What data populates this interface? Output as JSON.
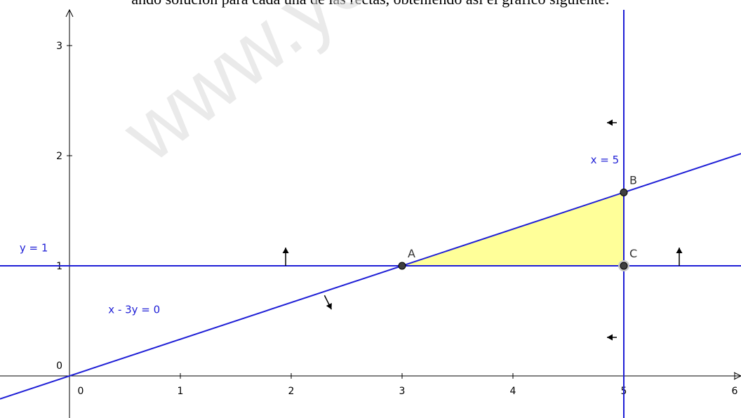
{
  "caption": "ando solución para cada una de las rectas, obteniendo así el gráfico siguiente:",
  "watermark": "www.yoquiero",
  "colors": {
    "line": "#1f1fd6",
    "region": "#ffff99",
    "point": "#404040",
    "axis": "#000000"
  },
  "chart_data": {
    "type": "line",
    "xlim": [
      -0.6,
      6.05
    ],
    "ylim": [
      -0.35,
      3.3
    ],
    "x_ticks": [
      0,
      1,
      2,
      3,
      4,
      5,
      6
    ],
    "y_ticks": [
      0,
      1,
      2,
      3
    ],
    "lines": [
      {
        "name": "y = 1",
        "kind": "horizontal",
        "y": 1,
        "label_at": [
          -0.45,
          1.13
        ],
        "arrow": {
          "dir": "up",
          "at": [
            1.95,
            1
          ],
          "at2": [
            5.5,
            1
          ]
        }
      },
      {
        "name": "x = 5",
        "kind": "vertical",
        "x": 5,
        "label_at": [
          4.7,
          1.93
        ],
        "arrow": {
          "dir": "left",
          "at": [
            5,
            2.3
          ],
          "at2": [
            5,
            0.35
          ]
        }
      },
      {
        "name": "x - 3y = 0",
        "kind": "slope",
        "slope": 0.3333333,
        "intercept": 0,
        "label_at": [
          0.35,
          0.57
        ],
        "arrow": {
          "dir": "down-right",
          "at": [
            2.3,
            0.77
          ],
          "at2": [
            6.7,
            2.23
          ]
        }
      }
    ],
    "feasible_region": [
      [
        3,
        1
      ],
      [
        5,
        1.6667
      ],
      [
        5,
        1
      ]
    ],
    "points": [
      {
        "label": "A",
        "x": 3,
        "y": 1
      },
      {
        "label": "B",
        "x": 5,
        "y": 1.6667
      },
      {
        "label": "C",
        "x": 5,
        "y": 1
      }
    ]
  }
}
